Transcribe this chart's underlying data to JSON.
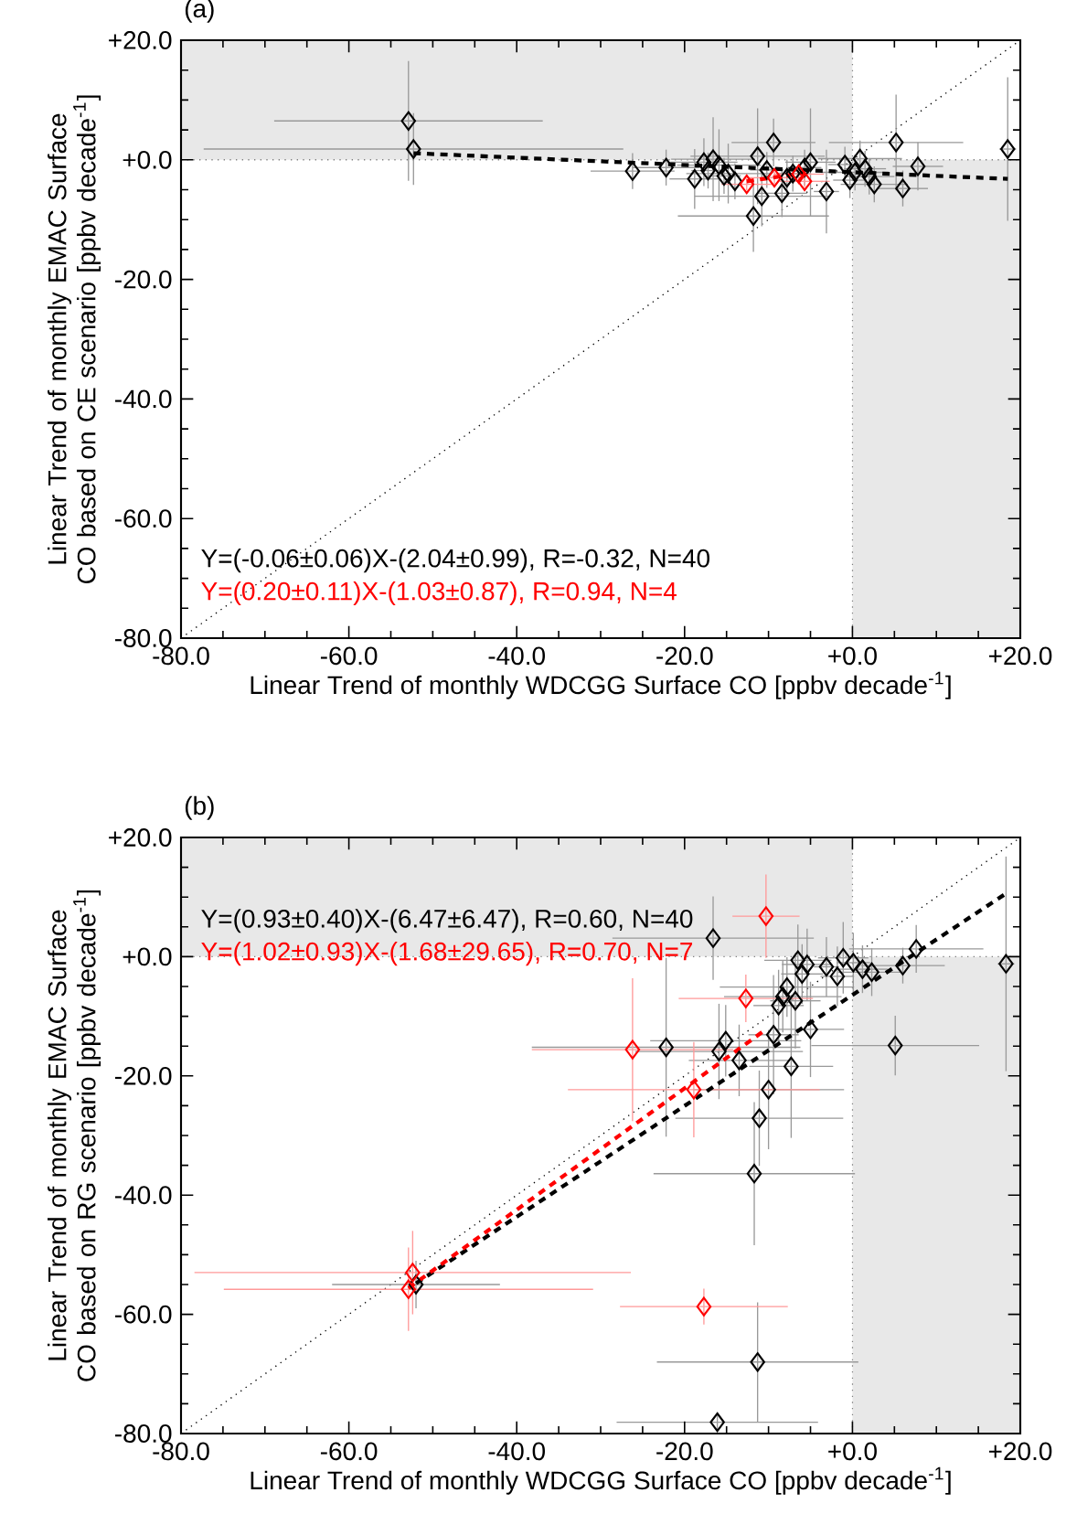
{
  "chart_data": [
    {
      "type": "scatter",
      "title": "(a)",
      "xlabel": "Linear Trend of monthly WDCGG Surface CO [ppbv decade$^{-1}$]",
      "ylabel": "Linear Trend of monthly EMAC Surface CO based on CE scenario [ppbv decade$^{-1}$]",
      "xlim": [
        -80,
        20
      ],
      "ylim": [
        -80,
        20
      ],
      "xticks": [
        {
          "value": -80,
          "label": "-80.0"
        },
        {
          "value": -60,
          "label": "-60.0"
        },
        {
          "value": -40,
          "label": "-40.0"
        },
        {
          "value": -20,
          "label": "-20.0"
        },
        {
          "value": 0,
          "label": "+0.0"
        },
        {
          "value": 20,
          "label": "+20.0"
        }
      ],
      "yticks": [
        {
          "value": -80,
          "label": "-80.0"
        },
        {
          "value": -60,
          "label": "-60.0"
        },
        {
          "value": -40,
          "label": "-40.0"
        },
        {
          "value": -20,
          "label": "-20.0"
        },
        {
          "value": 0,
          "label": "+0.0"
        },
        {
          "value": 20,
          "label": "+20.0"
        }
      ],
      "marker": "diamond",
      "grid": false,
      "annotations": [
        "Y=(-0.06±0.06)X-(2.04±0.99), R=-0.32, N=40",
        "Y=(0.20±0.11)X-(1.03±0.87), R=0.94, N=4"
      ],
      "series": [
        {
          "type": "area",
          "color": "#e8e8e8",
          "marker": "none",
          "x": [
            -80,
            0
          ],
          "values": [
            20,
            20
          ]
        },
        {
          "type": "area",
          "color": "#e8e8e8",
          "marker": "none",
          "x": [
            0,
            20
          ],
          "values": [
            -80,
            -80
          ]
        },
        {
          "type": "line",
          "color": "#808080",
          "line_style": "dotted",
          "marker": "none",
          "x": [
            0,
            0
          ],
          "values": [
            -80,
            20
          ]
        },
        {
          "type": "line",
          "color": "#808080",
          "line_style": "dotted",
          "marker": "none",
          "x": [
            -80,
            20
          ],
          "values": [
            0,
            0
          ]
        },
        {
          "type": "line",
          "color": "#000000",
          "line_style": "dotted",
          "marker": "none",
          "x": [
            -80,
            20
          ],
          "values": [
            -80,
            20
          ]
        },
        {
          "color": "#000000",
          "x": [
            -52.9,
            -52.3,
            -26.2,
            -22.2,
            -18.8,
            -17.7,
            -17.2,
            -16.6,
            -15.9,
            -15.3,
            -14.8,
            -14.0,
            -11.3,
            -10.8,
            -11.8,
            -10.2,
            -9.4,
            -8.4,
            -7.8,
            -7.1,
            -5.0,
            -3.1,
            -5.7,
            -0.9,
            -0.3,
            0.3,
            0.9,
            1.5,
            2.0,
            2.6,
            5.2,
            6.0,
            7.8,
            18.5
          ],
          "values": [
            6.5,
            1.8,
            -1.9,
            -1.3,
            -3.2,
            -0.4,
            -1.8,
            0.1,
            -0.9,
            -2.7,
            -2.3,
            -3.6,
            0.6,
            -6.1,
            -9.4,
            -1.7,
            2.9,
            -5.6,
            -3.0,
            -2.3,
            -0.4,
            -5.3,
            -1.3,
            -0.8,
            -3.4,
            -2.1,
            0.2,
            -1.5,
            -2.8,
            -4.1,
            2.9,
            -4.8,
            -1.1,
            1.8
          ],
          "xerrors": [
            16,
            25,
            5,
            4,
            3,
            4,
            2,
            5,
            5,
            2,
            5,
            null,
            8,
            8,
            9,
            2,
            5,
            3,
            2,
            2,
            3,
            1.5,
            2,
            2,
            2,
            4,
            5,
            2.5,
            3,
            4,
            8,
            3,
            3,
            1
          ],
          "errors": [
            10,
            6,
            3,
            3,
            5,
            4,
            3,
            7,
            6,
            3,
            5,
            3,
            8,
            5,
            6,
            3,
            4,
            4,
            3,
            3,
            9,
            7,
            3,
            3,
            3,
            3,
            3,
            3,
            3,
            3,
            8,
            3,
            4,
            12
          ]
        },
        {
          "color": "#ff0000",
          "x": [
            -12.6,
            -9.3,
            -6.4,
            -5.7
          ],
          "values": [
            -4.1,
            -3.0,
            -2.4,
            -3.6
          ],
          "xerrors": [
            3,
            3,
            3,
            3
          ],
          "errors": [
            1,
            1,
            1,
            1
          ]
        },
        {
          "type": "line",
          "color": "#000000",
          "line_style": "dashed",
          "marker": "none",
          "x": [
            -52.3,
            18.5
          ],
          "values": [
            1.1,
            -3.2
          ]
        },
        {
          "type": "line",
          "color": "#ff0000",
          "line_style": "dashed",
          "marker": "none",
          "x": [
            -12.6,
            -5.7
          ],
          "values": [
            -3.6,
            -2.2
          ]
        }
      ]
    },
    {
      "type": "scatter",
      "title": "(b)",
      "xlabel": "Linear Trend of monthly WDCGG Surface CO [ppbv decade$^{-1}$]",
      "ylabel": "Linear Trend of monthly EMAC Surface CO based on RG scenario [ppbv decade$^{-1}$]",
      "xlim": [
        -80,
        20
      ],
      "ylim": [
        -80,
        20
      ],
      "xticks": [
        {
          "value": -80,
          "label": "-80.0"
        },
        {
          "value": -60,
          "label": "-60.0"
        },
        {
          "value": -40,
          "label": "-40.0"
        },
        {
          "value": -20,
          "label": "-20.0"
        },
        {
          "value": 0,
          "label": "+0.0"
        },
        {
          "value": 20,
          "label": "+20.0"
        }
      ],
      "yticks": [
        {
          "value": -80,
          "label": "-80.0"
        },
        {
          "value": -60,
          "label": "-60.0"
        },
        {
          "value": -40,
          "label": "-40.0"
        },
        {
          "value": -20,
          "label": "-20.0"
        },
        {
          "value": 0,
          "label": "+0.0"
        },
        {
          "value": 20,
          "label": "+20.0"
        }
      ],
      "marker": "diamond",
      "grid": false,
      "annotations": [
        "Y=(0.93±0.40)X-(6.47±6.47), R=0.60, N=40",
        "Y=(1.02±0.93)X-(1.68±29.65), R=0.70, N=7"
      ],
      "series": [
        {
          "type": "area",
          "color": "#e8e8e8",
          "marker": "none",
          "x": [
            -80,
            0
          ],
          "values": [
            20,
            20
          ]
        },
        {
          "type": "area",
          "color": "#e8e8e8",
          "marker": "none",
          "x": [
            0,
            20
          ],
          "values": [
            -80,
            -80
          ]
        },
        {
          "type": "line",
          "color": "#808080",
          "line_style": "dotted",
          "marker": "none",
          "x": [
            0,
            0
          ],
          "values": [
            -80,
            20
          ]
        },
        {
          "type": "line",
          "color": "#808080",
          "line_style": "dotted",
          "marker": "none",
          "x": [
            -80,
            20
          ],
          "values": [
            0,
            0
          ]
        },
        {
          "type": "line",
          "color": "#000000",
          "line_style": "dotted",
          "marker": "none",
          "x": [
            -80,
            20
          ],
          "values": [
            -80,
            20
          ]
        },
        {
          "color": "#000000",
          "x": [
            -16.6,
            -6.5,
            -5.4,
            -6.0,
            -3.1,
            -1.1,
            -1.8,
            0.1,
            1.2,
            2.3,
            6.0,
            7.6,
            18.3,
            -7.8,
            -8.3,
            -8.8,
            -6.8,
            -15.1,
            -15.9,
            -13.5,
            -22.2,
            -9.4,
            -5.0,
            -7.3,
            -10.0,
            -11.1,
            5.1,
            -11.7,
            -11.3,
            -16.1,
            -52.0
          ],
          "values": [
            3.1,
            -0.6,
            -1.3,
            -2.9,
            -1.7,
            -0.2,
            -3.3,
            -1.0,
            -2.1,
            -2.6,
            -1.5,
            1.3,
            -1.2,
            -5.1,
            -6.7,
            -8.2,
            -7.4,
            -14.1,
            -15.9,
            -17.4,
            -15.2,
            -13.1,
            -12.2,
            -18.4,
            -22.3,
            -27.1,
            -14.9,
            -36.4,
            -68.0,
            -78.1,
            -55.0
          ],
          "xerrors": [
            12,
            4,
            3,
            2.5,
            1.5,
            3,
            2,
            2,
            3,
            4,
            5,
            8,
            1,
            8,
            7,
            3,
            3,
            9,
            10,
            6,
            16,
            3,
            4,
            5,
            9,
            10,
            10,
            12,
            12,
            12,
            10
          ],
          "errors": [
            7,
            6,
            6,
            5,
            5,
            6,
            5,
            5,
            4,
            4,
            3,
            4,
            18,
            5,
            6,
            6,
            8,
            6,
            8,
            6,
            15,
            10,
            8,
            12,
            10,
            8,
            5,
            12,
            10,
            1.5,
            4
          ]
        },
        {
          "color": "#ff0000",
          "x": [
            -52.4,
            -52.9,
            -26.2,
            -18.9,
            -12.7,
            -10.3,
            -17.7
          ],
          "values": [
            -53.0,
            -55.8,
            -15.6,
            -22.3,
            -7.0,
            6.8,
            -58.7
          ],
          "xerrors": [
            26,
            22,
            12,
            15,
            8,
            4,
            10
          ],
          "errors": [
            7,
            7,
            12,
            8,
            4,
            7,
            3
          ]
        },
        {
          "type": "line",
          "color": "#000000",
          "line_style": "dashed",
          "marker": "none",
          "x": [
            -52.0,
            18.3
          ],
          "values": [
            -54.8,
            10.6
          ]
        },
        {
          "type": "line",
          "color": "#ff0000",
          "line_style": "dashed",
          "marker": "none",
          "x": [
            -52.9,
            -10.3
          ],
          "values": [
            -55.6,
            -12.2
          ]
        }
      ]
    }
  ]
}
